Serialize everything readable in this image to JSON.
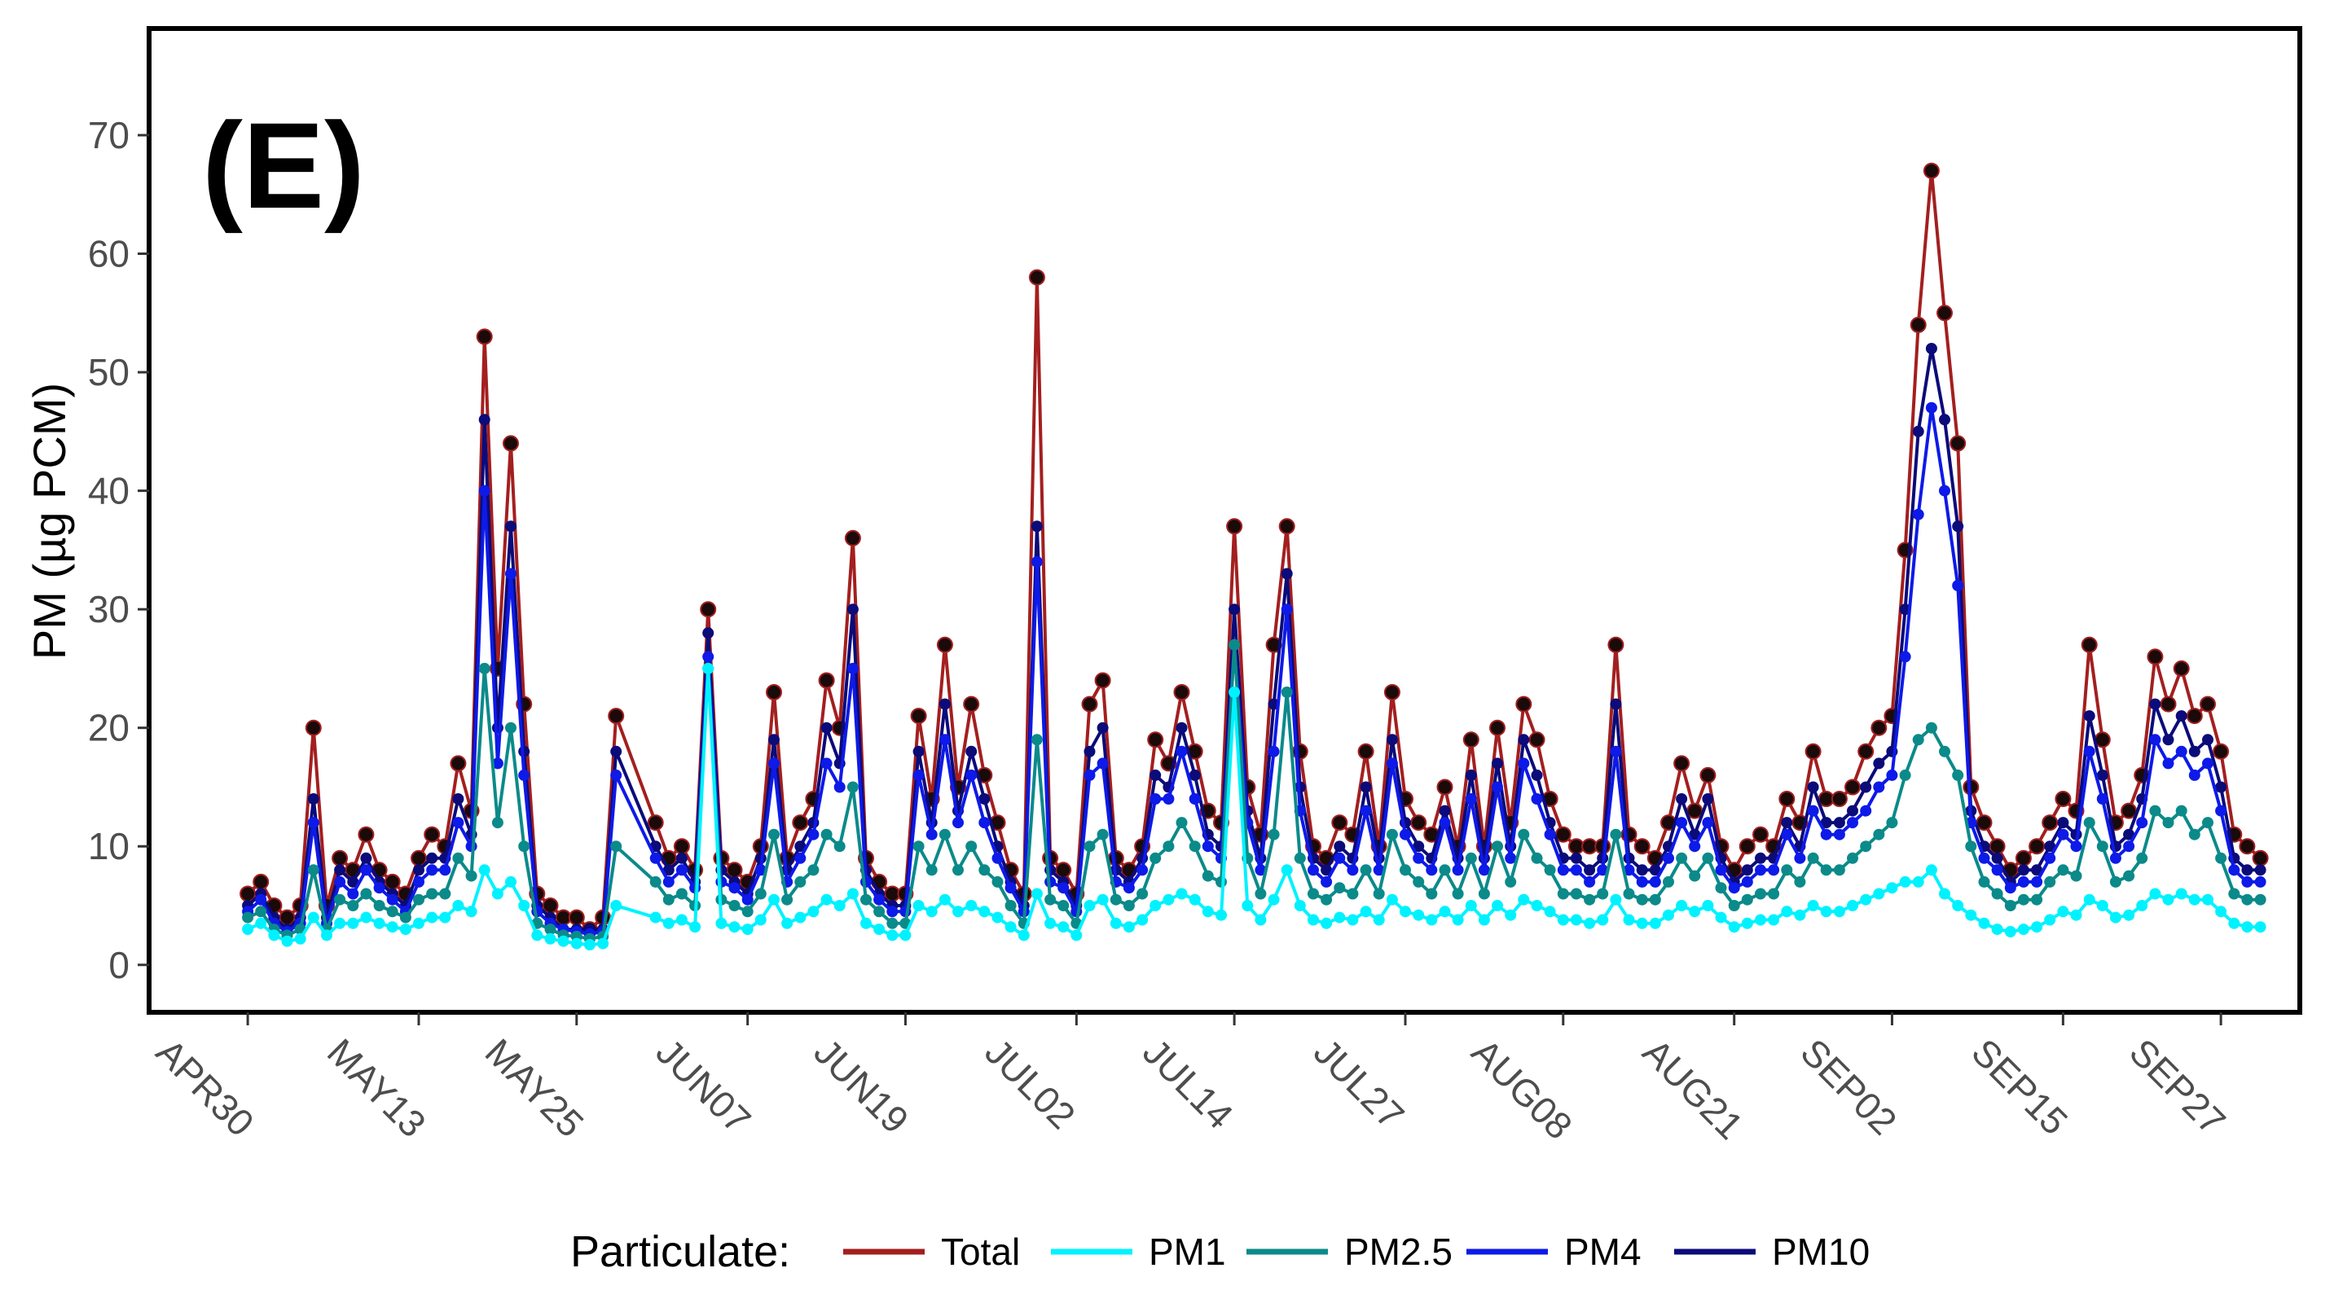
{
  "chart_data": {
    "type": "line",
    "panel_label": "(E)",
    "ylabel": "PM (µg PCM)",
    "xlabel": "",
    "ylim": [
      -4,
      79
    ],
    "y_ticks": [
      0,
      10,
      20,
      30,
      40,
      50,
      60,
      70
    ],
    "x_tick_labels": [
      "APR30",
      "MAY13",
      "MAY25",
      "JUN07",
      "JUN19",
      "JUL02",
      "JUL14",
      "JUL27",
      "AUG08",
      "AUG21",
      "SEP02",
      "SEP15",
      "SEP27"
    ],
    "x_tick_days": [
      0,
      13,
      25,
      38,
      50,
      63,
      75,
      88,
      100,
      113,
      125,
      138,
      150
    ],
    "xlim_days": [
      -7.5,
      156
    ],
    "grid": false,
    "legend": {
      "title": "Particulate:",
      "position": "bottom",
      "entries": [
        {
          "name": "Total",
          "color": "#a31f1f"
        },
        {
          "name": "PM1",
          "color": "#00f2ff"
        },
        {
          "name": "PM2.5",
          "color": "#0b8a8a"
        },
        {
          "name": "PM4",
          "color": "#0d1ae8"
        },
        {
          "name": "PM10",
          "color": "#0b0b7a"
        }
      ]
    },
    "series_days": [
      0,
      1,
      2,
      3,
      4,
      5,
      6,
      7,
      8,
      9,
      10,
      11,
      12,
      13,
      14,
      15,
      16,
      17,
      18,
      19,
      20,
      21,
      22,
      23,
      24,
      25,
      26,
      27,
      28,
      31,
      32,
      33,
      34,
      35,
      36,
      37,
      38,
      39,
      40,
      41,
      42,
      43,
      44,
      45,
      46,
      47,
      48,
      49,
      50,
      51,
      52,
      53,
      54,
      55,
      56,
      57,
      58,
      59,
      60,
      61,
      62,
      63,
      64,
      65,
      66,
      67,
      68,
      69,
      70,
      71,
      72,
      73,
      74,
      75,
      76,
      77,
      78,
      79,
      80,
      81,
      82,
      83,
      84,
      85,
      86,
      87,
      88,
      89,
      90,
      91,
      92,
      93,
      94,
      95,
      96,
      97,
      98,
      99,
      100,
      101,
      102,
      103,
      104,
      105,
      106,
      107,
      108,
      109,
      110,
      111,
      112,
      113,
      114,
      115,
      116,
      117,
      118,
      119,
      120,
      121,
      122,
      123,
      124,
      125,
      126,
      127,
      128,
      129,
      130,
      131,
      132,
      133,
      134,
      135,
      136,
      137,
      138,
      139,
      140,
      141,
      142,
      143,
      144,
      145,
      146,
      147,
      148,
      149,
      150,
      151,
      152,
      153
    ],
    "series": [
      {
        "name": "Total",
        "color": "#a31f1f",
        "values": [
          6,
          7,
          5,
          4,
          5,
          20,
          5,
          9,
          8,
          11,
          8,
          7,
          6,
          9,
          11,
          10,
          17,
          13,
          53,
          25,
          44,
          22,
          6,
          5,
          4,
          4,
          3,
          4,
          21,
          12,
          9,
          10,
          8,
          30,
          9,
          8,
          7,
          10,
          23,
          9,
          12,
          14,
          24,
          20,
          36,
          9,
          7,
          6,
          6,
          21,
          14,
          27,
          15,
          22,
          16,
          12,
          8,
          6,
          58,
          9,
          8,
          6,
          22,
          24,
          9,
          8,
          10,
          19,
          17,
          23,
          18,
          13,
          12,
          37,
          15,
          11,
          27,
          37,
          18,
          10,
          9,
          12,
          11,
          18,
          10,
          23,
          14,
          12,
          11,
          15,
          10,
          19,
          10,
          20,
          12,
          22,
          19,
          14,
          11,
          10,
          10,
          10,
          27,
          11,
          10,
          9,
          12,
          17,
          13,
          16,
          10,
          8,
          10,
          11,
          10,
          14,
          12,
          18,
          14,
          14,
          15,
          18,
          20,
          21,
          35,
          54,
          67,
          55,
          44,
          15,
          12,
          10,
          8,
          9,
          10,
          12,
          14,
          13,
          27,
          19,
          12,
          13,
          16,
          26,
          22,
          25,
          21,
          22,
          18,
          11,
          10,
          9
        ]
      },
      {
        "name": "PM10",
        "color": "#0b0b7a",
        "values": [
          5,
          6,
          4,
          3,
          4,
          14,
          4,
          8,
          7,
          9,
          7,
          6,
          5,
          8,
          9,
          9,
          14,
          11,
          46,
          20,
          37,
          18,
          5,
          4,
          3,
          3,
          3,
          3,
          18,
          10,
          8,
          9,
          7,
          28,
          8,
          7,
          6,
          9,
          19,
          8,
          10,
          12,
          20,
          17,
          30,
          8,
          6,
          5,
          5,
          18,
          12,
          22,
          13,
          18,
          14,
          10,
          7,
          5,
          37,
          8,
          7,
          5,
          18,
          20,
          8,
          7,
          9,
          16,
          15,
          20,
          16,
          11,
          10,
          30,
          13,
          9,
          22,
          33,
          15,
          9,
          8,
          10,
          9,
          15,
          9,
          19,
          12,
          10,
          9,
          13,
          9,
          16,
          9,
          17,
          10,
          19,
          16,
          12,
          9,
          9,
          8,
          9,
          22,
          9,
          8,
          8,
          10,
          14,
          11,
          14,
          9,
          7,
          8,
          9,
          9,
          12,
          10,
          15,
          12,
          12,
          13,
          15,
          17,
          18,
          30,
          45,
          52,
          46,
          37,
          13,
          10,
          9,
          7,
          8,
          8,
          10,
          12,
          11,
          21,
          16,
          10,
          11,
          14,
          22,
          19,
          21,
          18,
          19,
          15,
          9,
          8,
          8
        ]
      },
      {
        "name": "PM4",
        "color": "#0d1ae8",
        "values": [
          4.5,
          5.5,
          3.5,
          2.8,
          3.5,
          12,
          3.5,
          7,
          6,
          8,
          6.5,
          5.5,
          4.5,
          7,
          8,
          8,
          12,
          10,
          40,
          17,
          33,
          16,
          4.5,
          3.5,
          3,
          2.8,
          2.6,
          2.8,
          16,
          9,
          7,
          8,
          6.5,
          26,
          7,
          6.5,
          5.5,
          8,
          17,
          7,
          9,
          11,
          17,
          15,
          25,
          7,
          5.5,
          4.5,
          4.5,
          16,
          11,
          19,
          12,
          16,
          12,
          9,
          6.5,
          4.5,
          34,
          7,
          6.5,
          4.5,
          16,
          17,
          7,
          6.5,
          8,
          14,
          14,
          18,
          14,
          10,
          9,
          27,
          12,
          8,
          18,
          30,
          13,
          8,
          7,
          9,
          8,
          13,
          8,
          17,
          11,
          9,
          8,
          12,
          8,
          14,
          8,
          15,
          9,
          17,
          14,
          11,
          8,
          8,
          7,
          8,
          18,
          8,
          7,
          7,
          9,
          12,
          10,
          12,
          8,
          6.5,
          7,
          8,
          8,
          11,
          9,
          13,
          11,
          11,
          12,
          13,
          15,
          16,
          26,
          38,
          47,
          40,
          32,
          12,
          9,
          8,
          6.5,
          7,
          7,
          9,
          11,
          10,
          18,
          14,
          9,
          10,
          12,
          19,
          17,
          18,
          16,
          17,
          13,
          8,
          7,
          7
        ]
      },
      {
        "name": "PM2.5",
        "color": "#0b8a8a",
        "values": [
          4,
          4.5,
          3,
          2.5,
          3,
          8,
          3,
          5.5,
          5,
          6,
          5,
          4.5,
          4,
          5.5,
          6,
          6,
          9,
          7.5,
          25,
          12,
          20,
          10,
          3.5,
          3,
          2.5,
          2.4,
          2.2,
          2.4,
          10,
          7,
          5.5,
          6,
          5,
          25,
          5.5,
          5,
          4.5,
          6,
          11,
          5.5,
          7,
          8,
          11,
          10,
          15,
          5.5,
          4.5,
          3.5,
          3.5,
          10,
          8,
          11,
          8,
          10,
          8,
          7,
          5,
          3.5,
          19,
          5.5,
          5,
          3.5,
          10,
          11,
          5.5,
          5,
          6,
          9,
          10,
          12,
          10,
          7.5,
          7,
          27,
          9,
          6,
          11,
          23,
          9,
          6,
          5.5,
          6.5,
          6,
          8,
          6,
          11,
          8,
          7,
          6,
          8,
          6,
          9,
          6,
          10,
          7,
          11,
          9,
          8,
          6,
          6,
          5.5,
          6,
          11,
          6,
          5.5,
          5.5,
          7,
          9,
          7.5,
          9,
          6.5,
          5,
          5.5,
          6,
          6,
          8,
          7,
          9,
          8,
          8,
          9,
          10,
          11,
          12,
          16,
          19,
          20,
          18,
          16,
          10,
          7,
          6,
          5,
          5.5,
          5.5,
          7,
          8,
          7.5,
          12,
          10,
          7,
          7.5,
          9,
          13,
          12,
          13,
          11,
          12,
          9,
          6,
          5.5,
          5.5
        ]
      },
      {
        "name": "PM1",
        "color": "#00f2ff",
        "values": [
          3,
          3.5,
          2.5,
          2,
          2.2,
          4,
          2.5,
          3.5,
          3.5,
          4,
          3.5,
          3.2,
          3,
          3.5,
          4,
          4,
          5,
          4.5,
          8,
          6,
          7,
          5,
          2.5,
          2.2,
          2,
          1.8,
          1.7,
          1.8,
          5,
          4,
          3.5,
          3.8,
          3.2,
          25,
          3.5,
          3.2,
          3,
          3.8,
          5.5,
          3.5,
          4,
          4.5,
          5.5,
          5,
          6,
          3.5,
          3,
          2.5,
          2.5,
          5,
          4.5,
          5.5,
          4.5,
          5,
          4.5,
          4,
          3.2,
          2.5,
          6,
          3.5,
          3.2,
          2.5,
          5,
          5.5,
          3.5,
          3.2,
          3.8,
          5,
          5.5,
          6,
          5.5,
          4.5,
          4.2,
          23,
          5,
          3.8,
          5.5,
          8,
          5,
          3.8,
          3.5,
          4,
          3.8,
          4.5,
          3.8,
          5.5,
          4.5,
          4.2,
          3.8,
          4.5,
          3.8,
          5,
          3.8,
          5,
          4.2,
          5.5,
          5,
          4.5,
          3.8,
          3.8,
          3.5,
          3.8,
          5.5,
          3.8,
          3.5,
          3.5,
          4.2,
          5,
          4.5,
          5,
          4,
          3.2,
          3.5,
          3.8,
          3.8,
          4.5,
          4.2,
          5,
          4.5,
          4.5,
          5,
          5.5,
          6,
          6.5,
          7,
          7,
          8,
          6,
          5,
          4.2,
          3.5,
          3,
          2.8,
          3,
          3.2,
          3.8,
          4.5,
          4.2,
          5.5,
          5,
          4,
          4.2,
          5,
          6,
          5.5,
          6,
          5.5,
          5.5,
          4.5,
          3.5,
          3.2,
          3.2
        ]
      }
    ]
  }
}
